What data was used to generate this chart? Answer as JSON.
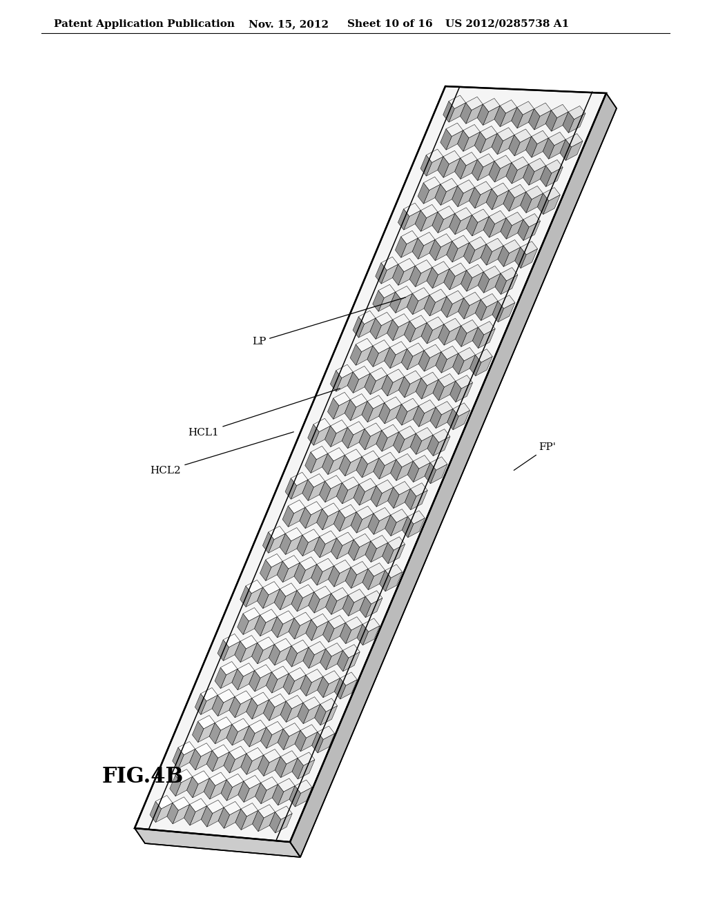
{
  "background_color": "#ffffff",
  "header_text": "Patent Application Publication",
  "header_date": "Nov. 15, 2012",
  "header_sheet": "Sheet 10 of 16",
  "header_patent": "US 2012/0285738 A1",
  "fig_label": "FIG.4B",
  "label_LP": "LP",
  "label_HCL1": "HCL1",
  "label_HCL2": "HCL2",
  "label_FP": "FP'",
  "header_fontsize": 11,
  "fig_label_fontsize": 22,
  "annotation_fontsize": 11,
  "n_cells_wide": 8,
  "n_cells_long": 27,
  "face_top_color": "#efefef",
  "face_left_color": "#aaaaaa",
  "face_right_color": "#cccccc",
  "panel_edge_color": "#000000",
  "panel_face_color": "#f5f5f5",
  "panel_bottom_color": "#cccccc",
  "panel_side_color": "#bbbbbb"
}
